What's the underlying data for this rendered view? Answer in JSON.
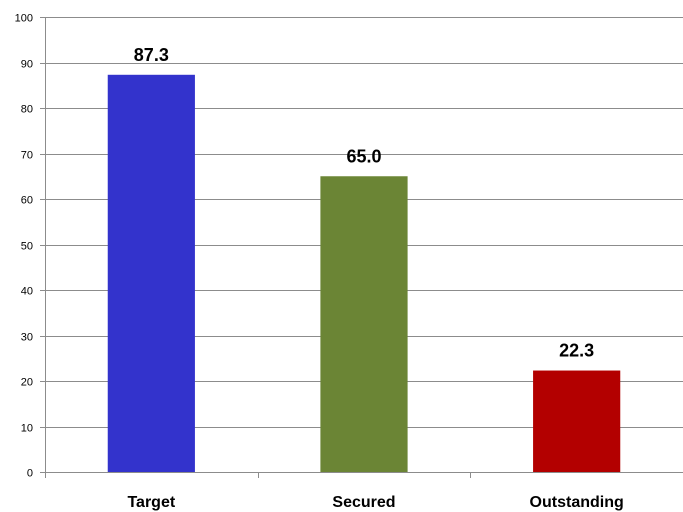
{
  "chart_data": {
    "type": "bar",
    "title": "",
    "xlabel": "",
    "ylabel": "",
    "categories": [
      "Target",
      "Secured",
      "Outstanding"
    ],
    "values": [
      87.3,
      65.0,
      22.3
    ],
    "data_labels": [
      "87.3",
      "65.0",
      "22.3"
    ],
    "colors": [
      "#3333cc",
      "#6b8535",
      "#b30000"
    ],
    "ylim": [
      0,
      100
    ],
    "yticks": [
      0,
      10,
      20,
      30,
      40,
      50,
      60,
      70,
      80,
      90,
      100
    ],
    "grid": true,
    "legend": "none"
  }
}
